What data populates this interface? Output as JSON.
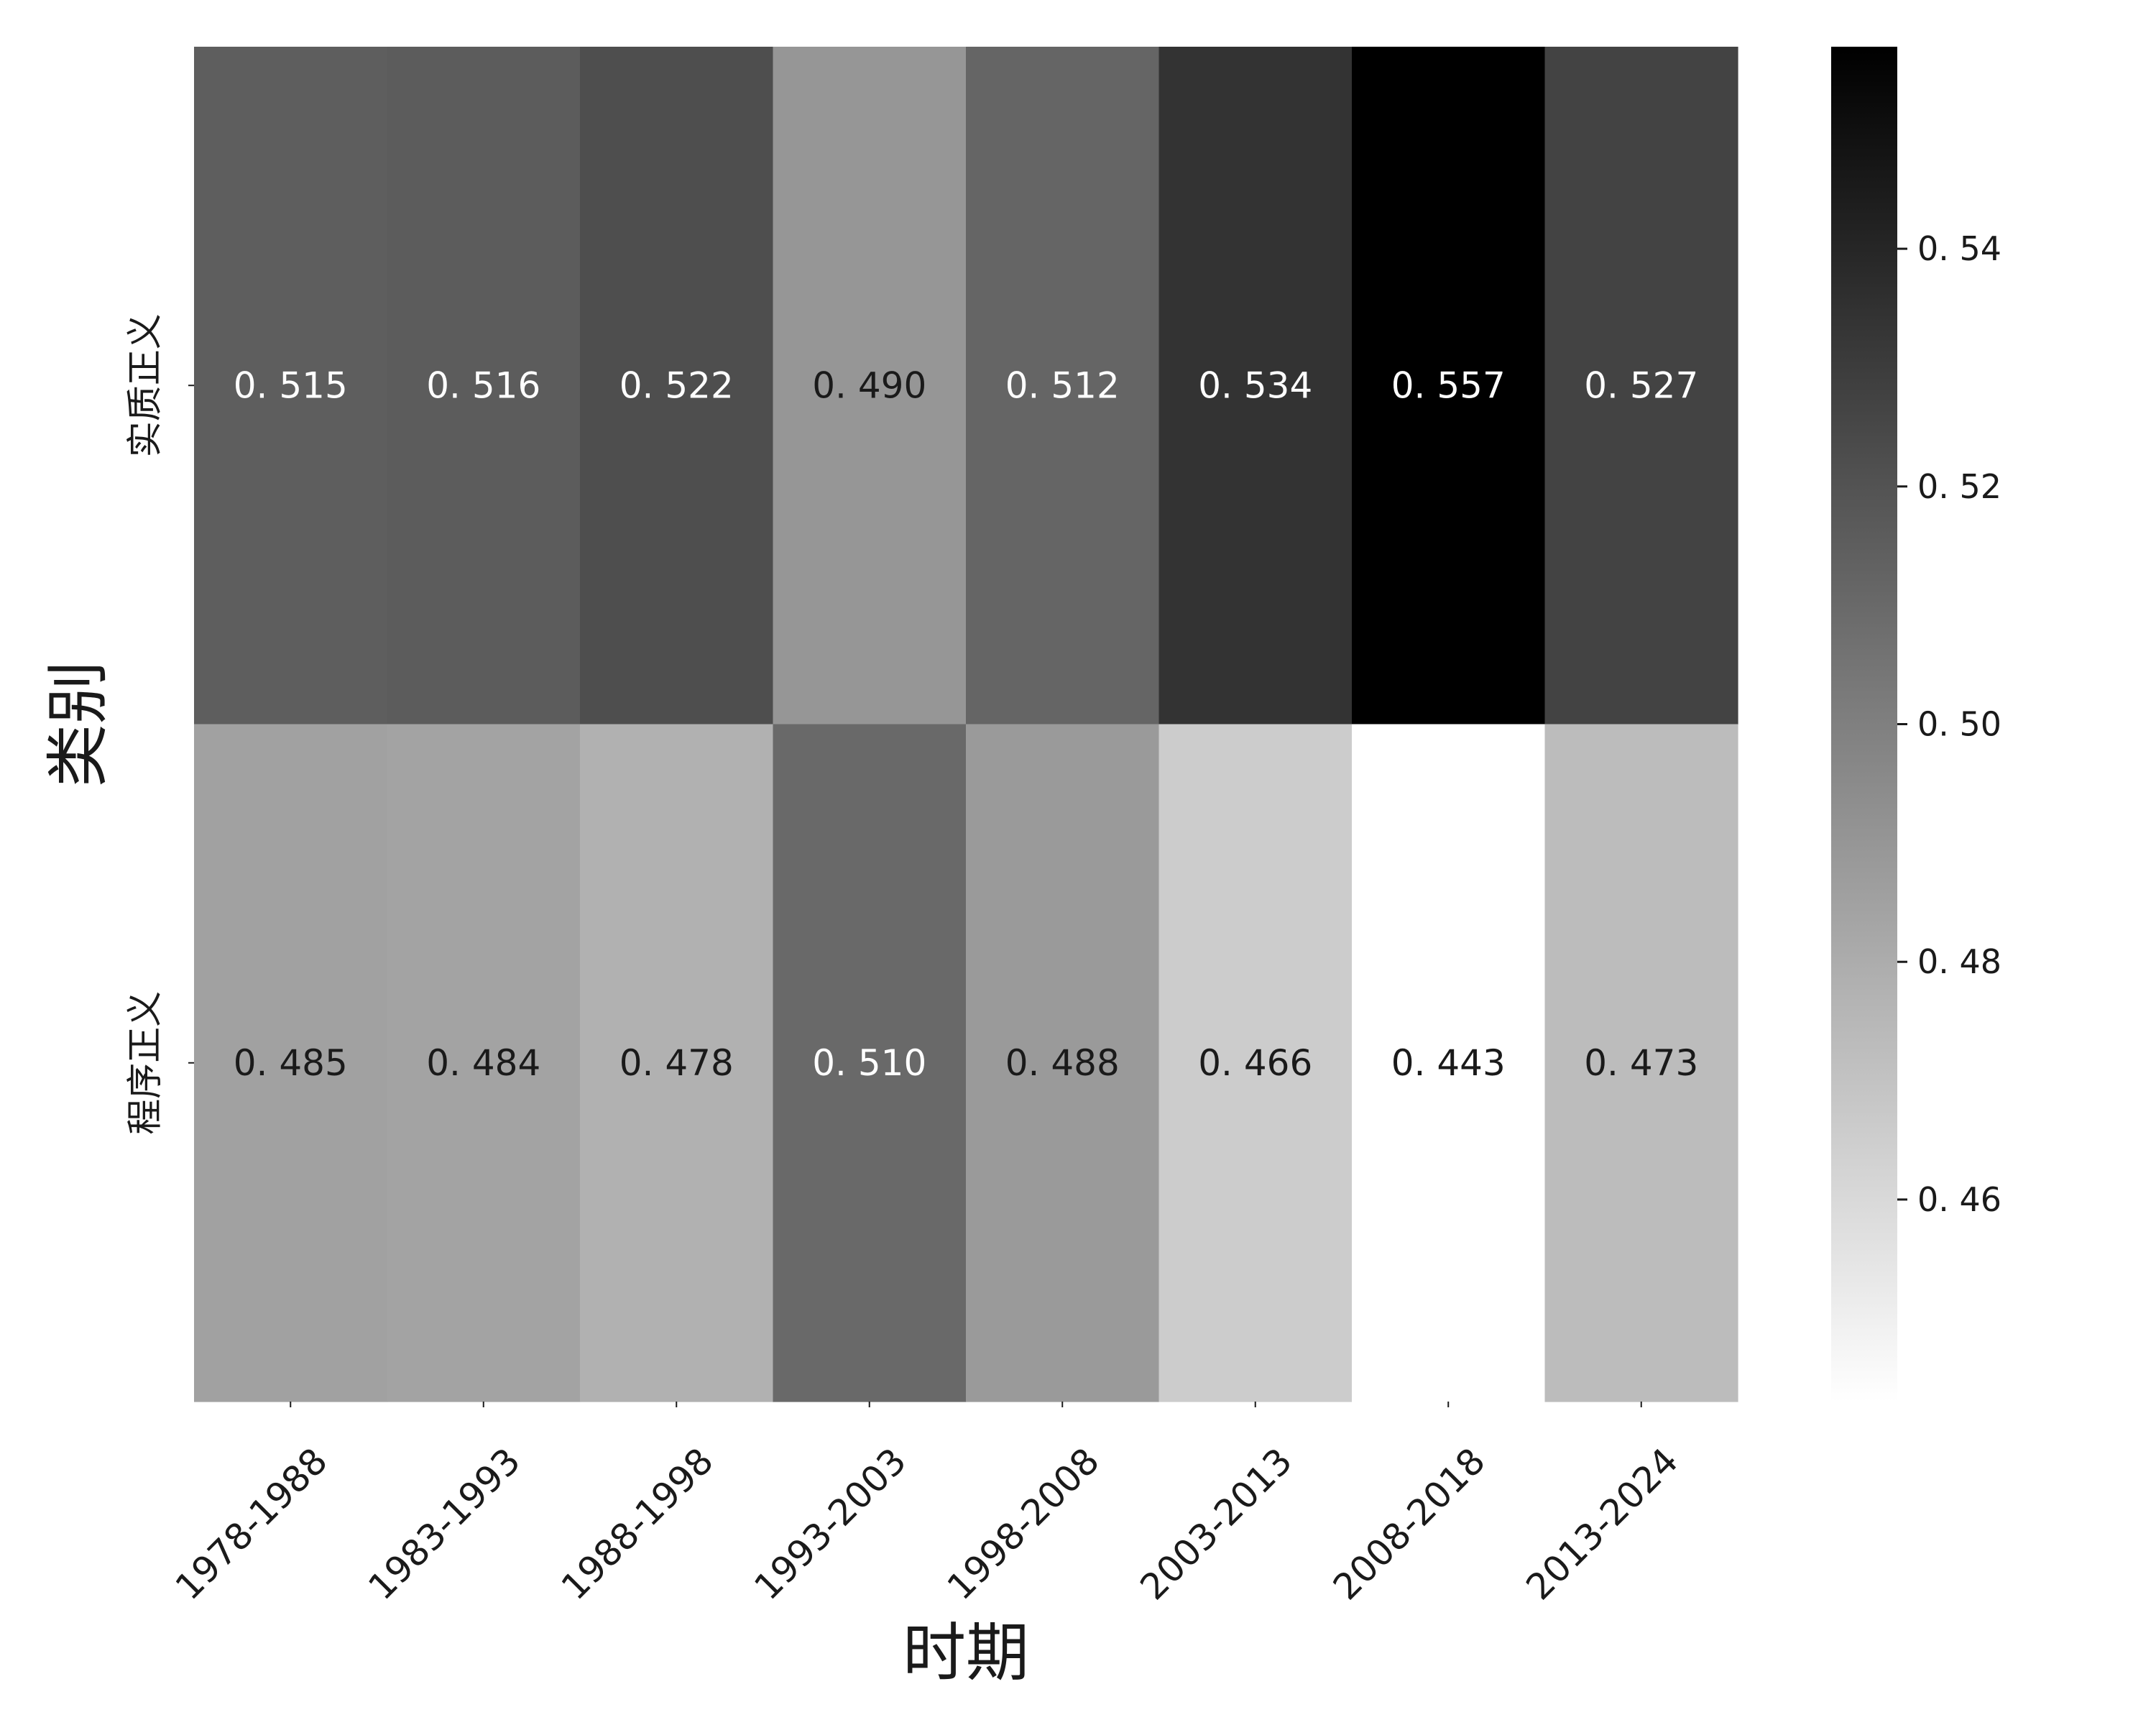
{
  "chart_data": {
    "type": "heatmap",
    "title": "",
    "xlabel": "时期",
    "ylabel": "类别",
    "columns": [
      "1978-1988",
      "1983-1993",
      "1988-1998",
      "1993-2003",
      "1998-2008",
      "2003-2013",
      "2008-2018",
      "2013-2024"
    ],
    "rows": [
      "实质正义",
      "程序正义"
    ],
    "values": [
      [
        0.515,
        0.516,
        0.522,
        0.49,
        0.512,
        0.534,
        0.557,
        0.527
      ],
      [
        0.485,
        0.484,
        0.478,
        0.51,
        0.488,
        0.466,
        0.443,
        0.473
      ]
    ],
    "value_labels": [
      [
        "0. 515",
        "0. 516",
        "0. 522",
        "0. 490",
        "0. 512",
        "0. 534",
        "0. 557",
        "0. 527"
      ],
      [
        "0. 485",
        "0. 484",
        "0. 478",
        "0. 510",
        "0. 488",
        "0. 466",
        "0. 443",
        "0. 473"
      ]
    ],
    "colormap": "Greys",
    "color_range": [
      0.443,
      0.557
    ],
    "colorbar": {
      "ticks": [
        0.46,
        0.48,
        0.5,
        0.52,
        0.54
      ],
      "tick_labels": [
        "0. 46",
        "0. 48",
        "0. 50",
        "0. 52",
        "0. 54"
      ]
    },
    "grid": false,
    "legend": "colorbar-right"
  }
}
